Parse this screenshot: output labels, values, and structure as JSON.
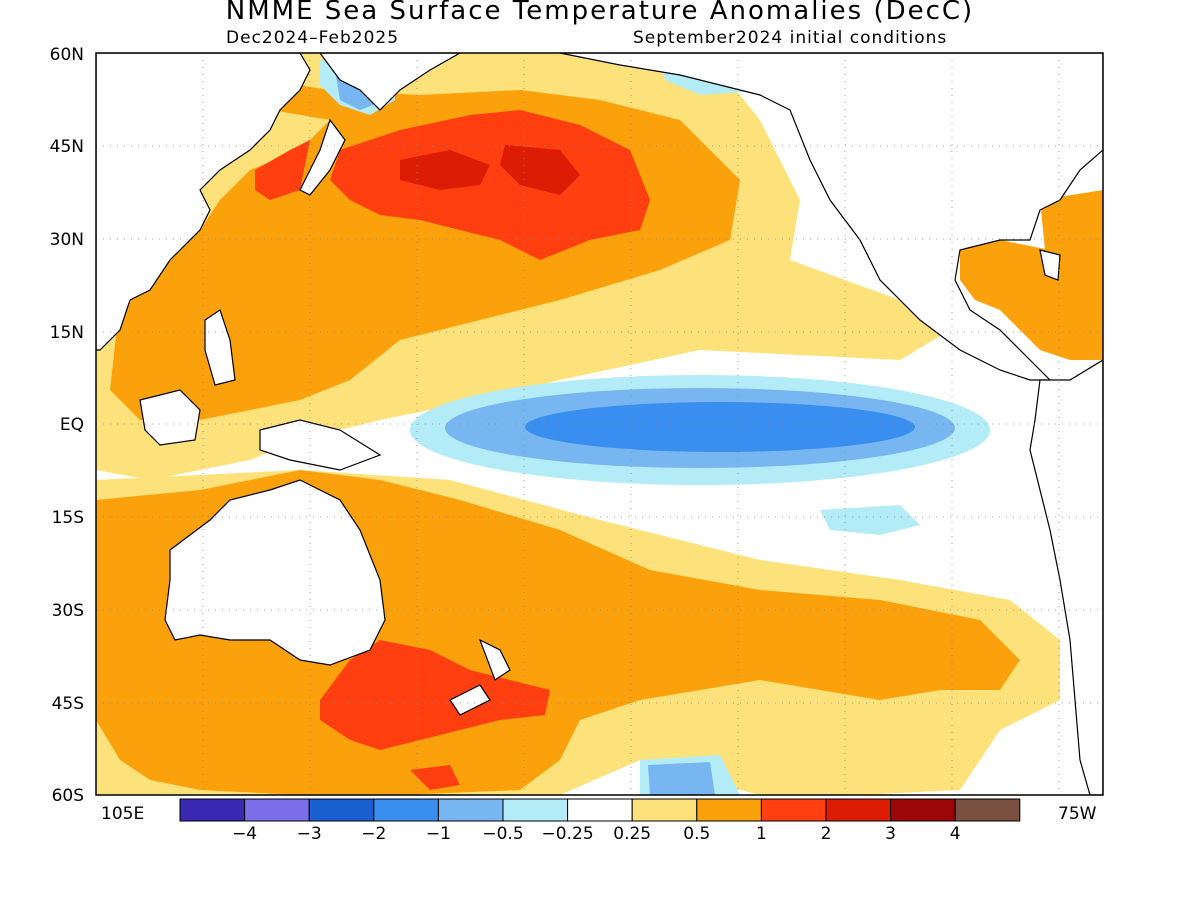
{
  "title": "NMME Sea Surface Temperature Anomalies (DecC)",
  "subtitle_left": "Dec2024–Feb2025",
  "subtitle_right": "September2024 initial conditions",
  "lat_labels": [
    "60N",
    "45N",
    "30N",
    "15N",
    "EQ",
    "15S",
    "30S",
    "45S",
    "60S"
  ],
  "lon_labels": {
    "left": "105E",
    "right": "75W"
  },
  "colorbar": {
    "labels": [
      "−4",
      "−3",
      "−2",
      "−1",
      "−0.5",
      "−0.25",
      "0.25",
      "0.5",
      "1",
      "2",
      "3",
      "4"
    ],
    "colors": [
      "#3a2ab3",
      "#7b6ee8",
      "#1a5fd0",
      "#3a8ef0",
      "#78b6f2",
      "#b3ecf7",
      "#ffffff",
      "#fde27c",
      "#fba10b",
      "#ff3f10",
      "#dc1c04",
      "#9d0606",
      "#7a5040"
    ]
  },
  "map": {
    "features": [
      {
        "name": "cold-tongue-outer",
        "color": "#b3ecf7"
      },
      {
        "name": "cold-tongue-mid",
        "color": "#78b6f2"
      },
      {
        "name": "cold-tongue-core",
        "color": "#3a8ef0"
      },
      {
        "name": "north-pacific-warm",
        "color": "#ff3f10"
      },
      {
        "name": "north-pacific-core",
        "color": "#dc1c04"
      },
      {
        "name": "tasman-warm",
        "color": "#ff3f10"
      }
    ]
  }
}
